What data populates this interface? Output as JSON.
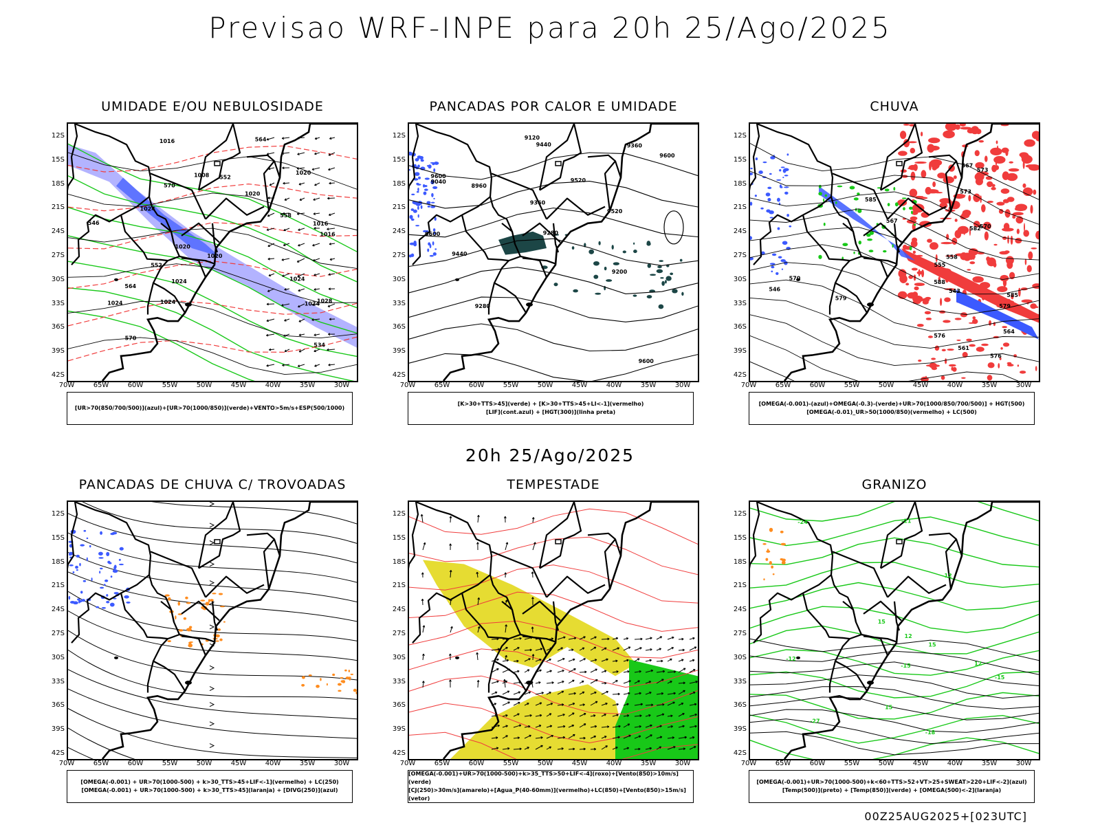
{
  "main_title": "Previsao WRF-INPE  para 20h 25/Ago/2025",
  "mid_title": "20h 25/Ago/2025",
  "footer": "00Z25AUG2025+[023UTC]",
  "axes": {
    "lat_labels": [
      "12S",
      "15S",
      "18S",
      "21S",
      "24S",
      "27S",
      "30S",
      "33S",
      "36S",
      "39S",
      "42S"
    ],
    "lon_labels": [
      "70W",
      "65W",
      "60W",
      "55W",
      "50W",
      "45W",
      "40W",
      "35W",
      "30W"
    ]
  },
  "colors": {
    "red": "#f03c3c",
    "blue": "#3c5aff",
    "green": "#18c818",
    "lavender": "#a0a0ff",
    "teal": "#1c4646",
    "yellow": "#e6dc32",
    "orange": "#ff8c1e"
  },
  "panels": [
    {
      "id": "umidade",
      "title": "UMIDADE E/OU NEBULOSIDADE",
      "legend": [
        "[UR>70(850/700/500)](azul)+[UR>70(1000/850)](verde)+VENTO>5m/s+ESP(500/1000)"
      ],
      "contour_labels": [
        "570",
        "1016",
        "1020",
        "1016",
        "1020",
        "1028",
        "1024",
        "564",
        "1024",
        "1020",
        "1024",
        "1024",
        "558",
        "1024",
        "1024",
        "1020",
        "552",
        "546",
        "1016",
        "1008",
        "534",
        "552",
        "570",
        "564"
      ]
    },
    {
      "id": "pancadas-calor",
      "title": "PANCADAS POR CALOR E UMIDADE",
      "legend": [
        "[K>30+TTS>45](verde) + [K>30+TTS>45+LI<-1](vermelho)",
        "[LIF](cont.azul) + [HGT(300)](linha preta)"
      ],
      "contour_labels": [
        "9600",
        "9440",
        "9520",
        "9600",
        "9600",
        "9600",
        "9440",
        "9520",
        "9360",
        "9360",
        "9280",
        "9200",
        "9120",
        "9040",
        "8960",
        "9280"
      ]
    },
    {
      "id": "chuva",
      "title": "CHUVA",
      "legend": [
        "[OMEGA(-0.001)-(azul)+OMEGA(-0.3)-(verde)+UR>70(1000/850/700/500)] + HGT(500)",
        "[OMEGA(-0.01)_UR>50(1000/850)(vermelho) + LC(500)"
      ],
      "contour_labels": [
        "588",
        "585",
        "582",
        "579",
        "576",
        "573",
        "570",
        "567",
        "564",
        "561",
        "558",
        "555",
        "546",
        "543",
        "579",
        "576",
        "573",
        "570",
        "567",
        "585"
      ]
    },
    {
      "id": "pancadas-trovoadas",
      "title": "PANCADAS DE CHUVA C/ TROVOADAS",
      "legend": [
        "[OMEGA(-0.001) + UR>70(1000-500) + k>30_TTS>45+LIF<-1](vermelho) + LC(250)",
        "[OMEGA(-0.001) + UR>70(1000-500) + k>30_TTS>45](laranja) + [DIVG(250)](azul)"
      ],
      "contour_labels": []
    },
    {
      "id": "tempestade",
      "title": "TEMPESTADE",
      "legend": [
        "[OMEGA(-0.001)+UR>70(1000-500)+k>35_TTS>50+LIF<-4](roxo)+[Vento(850)>10m/s](verde)",
        "[CJ(250)>30m/s](amarelo)+[Agua_P(40-60mm)](vermelho)+LC(850)+[Vento(850)>15m/s](vetor)"
      ],
      "contour_labels": []
    },
    {
      "id": "granizo",
      "title": "GRANIZO",
      "legend": [
        "[OMEGA(-0.001)+UR>70(1000-500)+k<60+TTS>52+VT>25+SWEAT>220+LIF<-2](azul)",
        "[Temp(500)](preto) + [Temp(850)](verde) + [OMEGA(500)<-2](laranja)"
      ],
      "contour_labels": [
        "-12",
        "-15",
        "-12",
        "-15",
        "-18",
        "-21",
        "-24",
        "-27",
        "12",
        "15",
        "15",
        "15",
        "12"
      ]
    }
  ]
}
